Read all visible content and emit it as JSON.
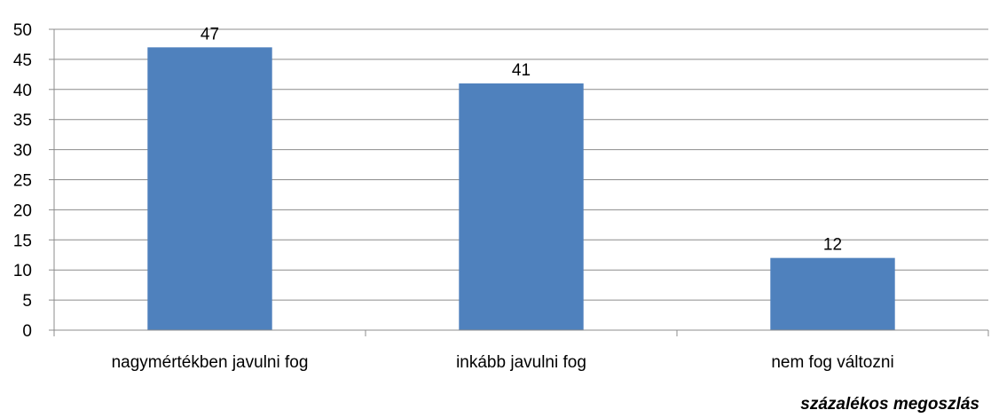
{
  "chart_data": {
    "type": "bar",
    "categories": [
      "nagymértékben javulni fog",
      "inkább javulni fog",
      "nem fog változni"
    ],
    "values": [
      47,
      41,
      12
    ],
    "ylim": [
      0,
      50
    ],
    "yticks": [
      0,
      5,
      10,
      15,
      20,
      25,
      30,
      35,
      40,
      45,
      50
    ],
    "grid": true,
    "bar_color": "#4F81BD",
    "footnote": "százalékos megoszlás"
  }
}
